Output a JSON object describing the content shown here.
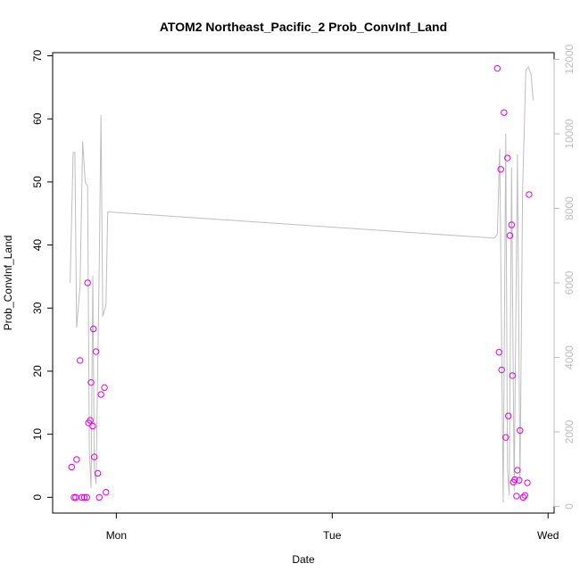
{
  "chart_data": {
    "type": "scatter",
    "title": "ATOM2 Northeast_Pacific_2 Prob_ConvInf_Land",
    "xlabel": "Date",
    "ylabel": "Prob_ConvInf_Land",
    "x_unit": "days since Sunday 00:00",
    "x_ticks": [
      {
        "value": 1,
        "label": "Mon"
      },
      {
        "value": 2,
        "label": "Tue"
      },
      {
        "value": 3,
        "label": "Wed"
      }
    ],
    "xlim": [
      0.705,
      3.028
    ],
    "ylim": [
      -2.5,
      70.5
    ],
    "y_ticks": [
      0,
      10,
      20,
      30,
      40,
      50,
      60,
      70
    ],
    "y2lim": [
      -180,
      12180
    ],
    "y2_ticks": [
      0,
      2000,
      4000,
      6000,
      8000,
      10000,
      12000
    ],
    "grid": false,
    "point_color": "#e000e0",
    "line_color": "#bebebe",
    "series": [
      {
        "type": "scatter",
        "axis": "left",
        "points": [
          [
            0.793,
            4.8
          ],
          [
            0.804,
            0.0
          ],
          [
            0.812,
            0.0
          ],
          [
            0.816,
            6.0
          ],
          [
            0.832,
            21.7
          ],
          [
            0.84,
            0.0
          ],
          [
            0.852,
            0.0
          ],
          [
            0.863,
            0.0
          ],
          [
            0.867,
            34.0
          ],
          [
            0.871,
            11.8
          ],
          [
            0.879,
            12.2
          ],
          [
            0.883,
            18.2
          ],
          [
            0.891,
            11.3
          ],
          [
            0.894,
            26.7
          ],
          [
            0.898,
            6.4
          ],
          [
            0.906,
            23.1
          ],
          [
            0.914,
            3.8
          ],
          [
            0.921,
            0.0
          ],
          [
            0.929,
            16.3
          ],
          [
            0.945,
            17.4
          ],
          [
            0.952,
            0.8
          ],
          [
            2.765,
            68.0
          ],
          [
            2.773,
            23.0
          ],
          [
            2.781,
            52.0
          ],
          [
            2.785,
            20.2
          ],
          [
            2.796,
            61.0
          ],
          [
            2.804,
            9.5
          ],
          [
            2.812,
            53.8
          ],
          [
            2.816,
            12.9
          ],
          [
            2.823,
            41.5
          ],
          [
            2.831,
            43.2
          ],
          [
            2.835,
            19.3
          ],
          [
            2.839,
            2.4
          ],
          [
            2.846,
            2.8
          ],
          [
            2.854,
            0.2
          ],
          [
            2.858,
            4.3
          ],
          [
            2.866,
            2.7
          ],
          [
            2.87,
            10.6
          ],
          [
            2.885,
            0.0
          ],
          [
            2.893,
            0.3
          ],
          [
            2.904,
            2.3
          ],
          [
            2.912,
            48.0
          ]
        ]
      },
      {
        "type": "line",
        "axis": "right",
        "points": [
          [
            0.786,
            6000
          ],
          [
            0.8,
            9500
          ],
          [
            0.808,
            9500
          ],
          [
            0.816,
            4800
          ],
          [
            0.832,
            5900
          ],
          [
            0.844,
            9800
          ],
          [
            0.856,
            8700
          ],
          [
            0.867,
            8600
          ],
          [
            0.875,
            1500
          ],
          [
            0.883,
            500
          ],
          [
            0.891,
            6200
          ],
          [
            0.898,
            1000
          ],
          [
            0.906,
            600
          ],
          [
            0.921,
            6500
          ],
          [
            0.929,
            10500
          ],
          [
            0.937,
            5100
          ],
          [
            0.952,
            5400
          ],
          [
            0.96,
            7900
          ],
          [
            0.975,
            7900
          ],
          [
            2.751,
            7200
          ],
          [
            2.765,
            7300
          ],
          [
            2.776,
            9600
          ],
          [
            2.792,
            100
          ],
          [
            2.804,
            10000
          ],
          [
            2.812,
            1000
          ],
          [
            2.82,
            300
          ],
          [
            2.831,
            9100
          ],
          [
            2.843,
            400
          ],
          [
            2.858,
            9450
          ],
          [
            2.87,
            600
          ],
          [
            2.882,
            8500
          ],
          [
            2.897,
            11700
          ],
          [
            2.909,
            11800
          ],
          [
            2.921,
            11600
          ],
          [
            2.931,
            10900
          ]
        ]
      }
    ]
  }
}
